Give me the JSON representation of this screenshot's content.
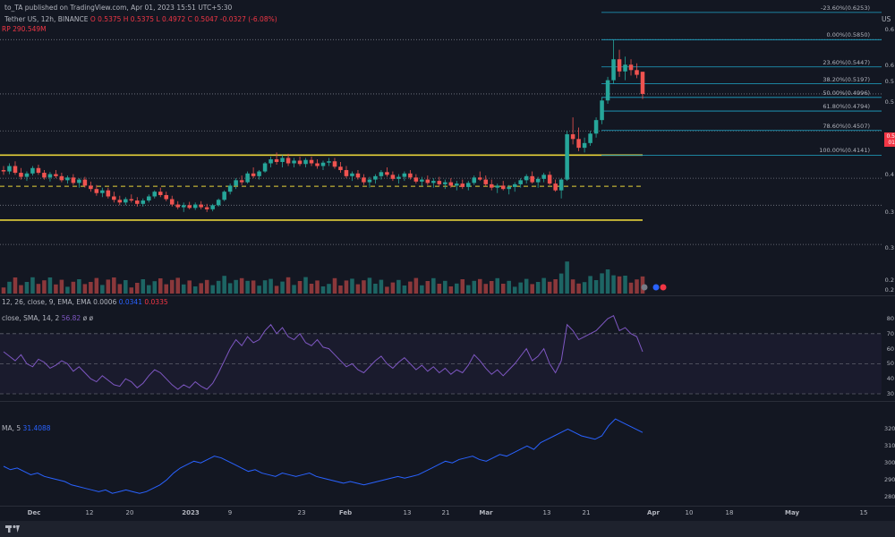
{
  "header": {
    "line1": "to_TA published on TradingView.com, Apr 01, 2023 15:51 UTC+5:30",
    "line2_pair": "Tether US, 12h, BINANCE",
    "line2_o": "O 0.5375",
    "line2_h": "H 0.5375",
    "line2_l": "L 0.4972",
    "line2_c": "C 0.5047",
    "line2_chg": "-0.0327 (-6.08%)",
    "line3": "RP 290.549M",
    "top_right": "US"
  },
  "indicators": {
    "macd_label": "12, 26, close, 9, EMA, EMA",
    "macd_v1": "0.0006",
    "macd_v2": "0.0341",
    "macd_v3": "0.0335",
    "rsi_label": "close, SMA, 14, 2",
    "rsi_value": "56.82",
    "rsi_extra": "ø ø",
    "obv_label": "MA, 5",
    "obv_value": "31.4088"
  },
  "price_axis": [
    "0.6",
    "0.6",
    "0.5",
    "0.5",
    "0.4",
    "0.3",
    "0.3",
    "0.2",
    "0.2"
  ],
  "rsi_axis": [
    "80",
    "70",
    "60",
    "50",
    "40",
    "30"
  ],
  "obv_axis": [
    "320",
    "310",
    "300",
    "290",
    "280"
  ],
  "price_tag": {
    "value": "0.5",
    "sub": "01"
  },
  "dates": [
    "Dec",
    "12",
    "20",
    "2023",
    "9",
    "23",
    "Feb",
    "13",
    "21",
    "Mar",
    "13",
    "21",
    "Apr",
    "10",
    "18",
    "May",
    "15"
  ],
  "colors": {
    "background": "#131722",
    "up": "#26a69a",
    "down": "#ef5350",
    "zone": "#e6d23a",
    "fib": "#1fa6c8",
    "rsi": "#7e57c2",
    "obv": "#2962ff",
    "grid": "#5d606b"
  },
  "chart_data": {
    "type": "candlestick",
    "fib_levels": [
      {
        "label": "-23.60%(0.6253)",
        "price": 0.6253
      },
      {
        "label": "0.00%(0.5850)",
        "price": 0.585
      },
      {
        "label": "23.60%(0.5447)",
        "price": 0.5447
      },
      {
        "label": "38.20%(0.5197)",
        "price": 0.5197
      },
      {
        "label": "50.00%(0.4996)",
        "price": 0.4996
      },
      {
        "label": "61.80%(0.4794)",
        "price": 0.4794
      },
      {
        "label": "78.60%(0.4507)",
        "price": 0.4507
      },
      {
        "label": "100.00%(0.4141)",
        "price": 0.4141
      }
    ],
    "zones": [
      0.4141,
      0.368,
      0.318
    ],
    "dotted_levels": [
      0.585,
      0.5047,
      0.45,
      0.38,
      0.34,
      0.282
    ],
    "ohlc": [
      [
        0.392,
        0.398,
        0.385,
        0.39
      ],
      [
        0.39,
        0.402,
        0.386,
        0.398
      ],
      [
        0.398,
        0.405,
        0.385,
        0.388
      ],
      [
        0.388,
        0.395,
        0.378,
        0.382
      ],
      [
        0.382,
        0.39,
        0.376,
        0.387
      ],
      [
        0.387,
        0.398,
        0.384,
        0.395
      ],
      [
        0.395,
        0.4,
        0.385,
        0.388
      ],
      [
        0.388,
        0.392,
        0.378,
        0.381
      ],
      [
        0.381,
        0.389,
        0.375,
        0.386
      ],
      [
        0.386,
        0.392,
        0.38,
        0.383
      ],
      [
        0.383,
        0.388,
        0.374,
        0.377
      ],
      [
        0.377,
        0.384,
        0.372,
        0.381
      ],
      [
        0.381,
        0.386,
        0.37,
        0.373
      ],
      [
        0.373,
        0.38,
        0.366,
        0.378
      ],
      [
        0.378,
        0.382,
        0.366,
        0.369
      ],
      [
        0.369,
        0.375,
        0.36,
        0.364
      ],
      [
        0.364,
        0.37,
        0.354,
        0.358
      ],
      [
        0.358,
        0.366,
        0.352,
        0.362
      ],
      [
        0.362,
        0.366,
        0.35,
        0.353
      ],
      [
        0.353,
        0.36,
        0.344,
        0.348
      ],
      [
        0.348,
        0.354,
        0.34,
        0.344
      ],
      [
        0.344,
        0.352,
        0.34,
        0.349
      ],
      [
        0.349,
        0.356,
        0.344,
        0.347
      ],
      [
        0.347,
        0.352,
        0.338,
        0.342
      ],
      [
        0.342,
        0.35,
        0.338,
        0.347
      ],
      [
        0.347,
        0.356,
        0.344,
        0.353
      ],
      [
        0.353,
        0.362,
        0.35,
        0.36
      ],
      [
        0.36,
        0.366,
        0.352,
        0.355
      ],
      [
        0.355,
        0.36,
        0.346,
        0.349
      ],
      [
        0.349,
        0.354,
        0.338,
        0.341
      ],
      [
        0.341,
        0.346,
        0.334,
        0.337
      ],
      [
        0.337,
        0.344,
        0.33,
        0.34
      ],
      [
        0.34,
        0.345,
        0.334,
        0.336
      ],
      [
        0.336,
        0.344,
        0.333,
        0.341
      ],
      [
        0.341,
        0.346,
        0.334,
        0.337
      ],
      [
        0.337,
        0.342,
        0.33,
        0.334
      ],
      [
        0.334,
        0.342,
        0.331,
        0.34
      ],
      [
        0.34,
        0.35,
        0.338,
        0.348
      ],
      [
        0.348,
        0.362,
        0.346,
        0.36
      ],
      [
        0.36,
        0.372,
        0.356,
        0.369
      ],
      [
        0.369,
        0.38,
        0.364,
        0.377
      ],
      [
        0.377,
        0.384,
        0.37,
        0.374
      ],
      [
        0.374,
        0.39,
        0.372,
        0.387
      ],
      [
        0.387,
        0.396,
        0.38,
        0.383
      ],
      [
        0.383,
        0.392,
        0.378,
        0.39
      ],
      [
        0.39,
        0.404,
        0.388,
        0.402
      ],
      [
        0.402,
        0.412,
        0.396,
        0.408
      ],
      [
        0.408,
        0.418,
        0.4,
        0.404
      ],
      [
        0.404,
        0.414,
        0.396,
        0.41
      ],
      [
        0.41,
        0.416,
        0.398,
        0.402
      ],
      [
        0.402,
        0.41,
        0.396,
        0.406
      ],
      [
        0.406,
        0.412,
        0.398,
        0.401
      ],
      [
        0.401,
        0.41,
        0.396,
        0.407
      ],
      [
        0.407,
        0.412,
        0.398,
        0.402
      ],
      [
        0.402,
        0.408,
        0.394,
        0.398
      ],
      [
        0.398,
        0.406,
        0.392,
        0.403
      ],
      [
        0.403,
        0.41,
        0.398,
        0.405
      ],
      [
        0.405,
        0.41,
        0.394,
        0.397
      ],
      [
        0.397,
        0.404,
        0.388,
        0.392
      ],
      [
        0.392,
        0.398,
        0.38,
        0.383
      ],
      [
        0.383,
        0.39,
        0.376,
        0.387
      ],
      [
        0.387,
        0.392,
        0.378,
        0.381
      ],
      [
        0.381,
        0.386,
        0.37,
        0.374
      ],
      [
        0.374,
        0.382,
        0.366,
        0.378
      ],
      [
        0.378,
        0.386,
        0.372,
        0.383
      ],
      [
        0.383,
        0.392,
        0.378,
        0.389
      ],
      [
        0.389,
        0.396,
        0.382,
        0.385
      ],
      [
        0.385,
        0.39,
        0.376,
        0.379
      ],
      [
        0.379,
        0.386,
        0.372,
        0.382
      ],
      [
        0.382,
        0.39,
        0.376,
        0.387
      ],
      [
        0.387,
        0.392,
        0.378,
        0.381
      ],
      [
        0.381,
        0.386,
        0.372,
        0.375
      ],
      [
        0.375,
        0.382,
        0.368,
        0.378
      ],
      [
        0.378,
        0.384,
        0.37,
        0.373
      ],
      [
        0.373,
        0.38,
        0.366,
        0.376
      ],
      [
        0.376,
        0.382,
        0.368,
        0.371
      ],
      [
        0.371,
        0.378,
        0.364,
        0.374
      ],
      [
        0.374,
        0.38,
        0.366,
        0.369
      ],
      [
        0.369,
        0.376,
        0.362,
        0.372
      ],
      [
        0.372,
        0.378,
        0.364,
        0.367
      ],
      [
        0.367,
        0.376,
        0.362,
        0.373
      ],
      [
        0.373,
        0.384,
        0.37,
        0.381
      ],
      [
        0.381,
        0.39,
        0.376,
        0.378
      ],
      [
        0.378,
        0.384,
        0.368,
        0.371
      ],
      [
        0.371,
        0.378,
        0.362,
        0.366
      ],
      [
        0.366,
        0.372,
        0.358,
        0.369
      ],
      [
        0.369,
        0.376,
        0.362,
        0.364
      ],
      [
        0.364,
        0.37,
        0.356,
        0.367
      ],
      [
        0.367,
        0.374,
        0.36,
        0.371
      ],
      [
        0.371,
        0.38,
        0.366,
        0.377
      ],
      [
        0.377,
        0.386,
        0.372,
        0.383
      ],
      [
        0.383,
        0.39,
        0.372,
        0.374
      ],
      [
        0.374,
        0.382,
        0.366,
        0.379
      ],
      [
        0.379,
        0.388,
        0.374,
        0.385
      ],
      [
        0.385,
        0.39,
        0.37,
        0.372
      ],
      [
        0.372,
        0.378,
        0.36,
        0.362
      ],
      [
        0.362,
        0.38,
        0.35,
        0.378
      ],
      [
        0.378,
        0.45,
        0.376,
        0.445
      ],
      [
        0.445,
        0.47,
        0.43,
        0.438
      ],
      [
        0.438,
        0.455,
        0.42,
        0.425
      ],
      [
        0.425,
        0.44,
        0.418,
        0.432
      ],
      [
        0.432,
        0.45,
        0.428,
        0.446
      ],
      [
        0.446,
        0.47,
        0.44,
        0.466
      ],
      [
        0.466,
        0.5,
        0.46,
        0.495
      ],
      [
        0.495,
        0.53,
        0.49,
        0.525
      ],
      [
        0.525,
        0.585,
        0.52,
        0.556
      ],
      [
        0.556,
        0.57,
        0.53,
        0.538
      ],
      [
        0.538,
        0.56,
        0.525,
        0.548
      ],
      [
        0.548,
        0.556,
        0.532,
        0.54
      ],
      [
        0.54,
        0.55,
        0.528,
        0.533
      ],
      [
        0.5375,
        0.5375,
        0.4972,
        0.5047
      ]
    ],
    "rsi": [
      58,
      55,
      52,
      56,
      50,
      48,
      53,
      51,
      47,
      49,
      52,
      50,
      45,
      48,
      44,
      40,
      38,
      42,
      39,
      36,
      35,
      40,
      38,
      34,
      37,
      42,
      46,
      44,
      40,
      36,
      33,
      36,
      34,
      38,
      35,
      33,
      37,
      44,
      52,
      60,
      66,
      62,
      68,
      64,
      66,
      72,
      76,
      70,
      74,
      68,
      66,
      70,
      64,
      62,
      66,
      61,
      60,
      56,
      52,
      48,
      50,
      46,
      44,
      48,
      52,
      55,
      50,
      47,
      51,
      54,
      50,
      46,
      49,
      45,
      48,
      44,
      47,
      43,
      46,
      44,
      49,
      56,
      52,
      47,
      43,
      46,
      42,
      46,
      50,
      55,
      60,
      52,
      55,
      60,
      50,
      44,
      52,
      76,
      72,
      66,
      68,
      70,
      72,
      76,
      80,
      82,
      72,
      74,
      70,
      68,
      58
    ],
    "obv": [
      298,
      296,
      297,
      295,
      293,
      294,
      292,
      291,
      290,
      289,
      287,
      286,
      285,
      284,
      283,
      284,
      282,
      283,
      284,
      283,
      282,
      283,
      285,
      287,
      290,
      294,
      297,
      299,
      301,
      300,
      302,
      304,
      303,
      301,
      299,
      297,
      295,
      296,
      294,
      293,
      292,
      294,
      293,
      292,
      293,
      294,
      292,
      291,
      290,
      289,
      288,
      289,
      288,
      287,
      288,
      289,
      290,
      291,
      292,
      291,
      292,
      293,
      295,
      297,
      299,
      301,
      300,
      302,
      303,
      304,
      302,
      301,
      303,
      305,
      304,
      306,
      308,
      310,
      308,
      312,
      314,
      316,
      318,
      320,
      318,
      316,
      315,
      314,
      316,
      322,
      326,
      324,
      322,
      320,
      318
    ]
  }
}
